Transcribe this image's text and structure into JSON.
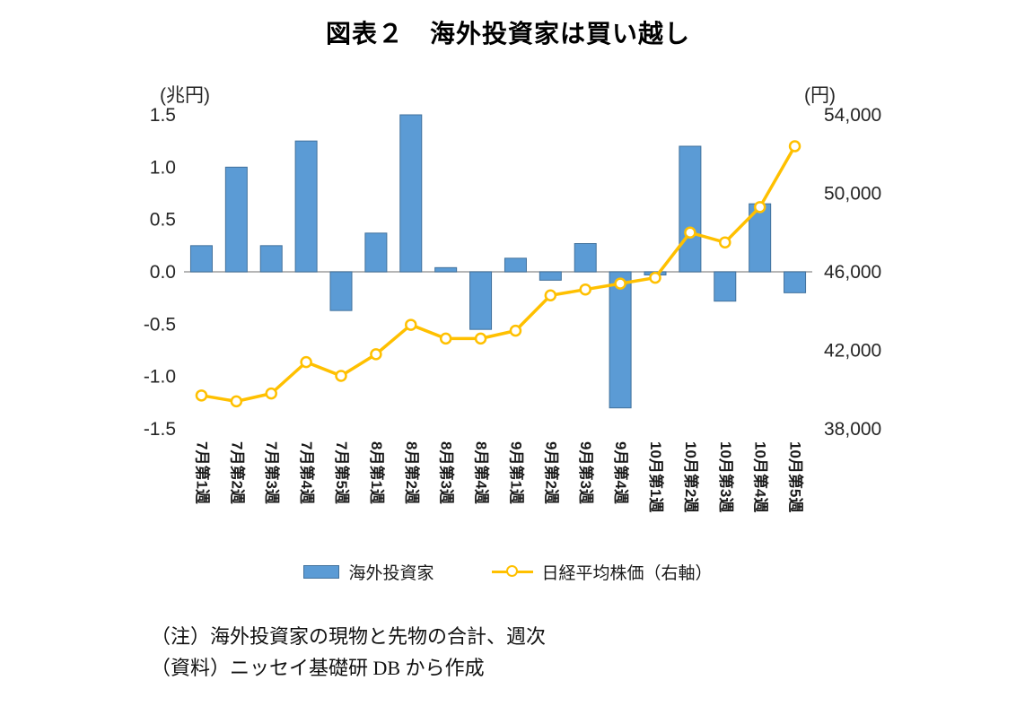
{
  "title": "図表２　海外投資家は買い越し",
  "left_axis": {
    "unit": "(兆円)",
    "tick_values": [
      1.5,
      1.0,
      0.5,
      0.0,
      -0.5,
      -1.0,
      -1.5
    ],
    "tick_labels": [
      "1.5",
      "1.0",
      "0.5",
      "0.0",
      "-0.5",
      "-1.0",
      "-1.5"
    ]
  },
  "right_axis": {
    "unit": "(円)",
    "tick_values": [
      54000,
      50000,
      46000,
      42000,
      38000
    ],
    "tick_labels": [
      "54,000",
      "50,000",
      "46,000",
      "42,000",
      "38,000"
    ]
  },
  "legend": {
    "items": [
      {
        "label": "海外投資家"
      },
      {
        "label": "日経平均株価（右軸）"
      }
    ]
  },
  "notes": {
    "line1": "（注）海外投資家の現物と先物の合計、週次",
    "line2": "（資料）ニッセイ基礎研 DB から作成"
  },
  "colors": {
    "bar": "#5B9BD5",
    "bar_border": "#41719C",
    "line": "#FFC000",
    "marker_fill": "#FFFFFF",
    "zero_line": "#9E9E9E"
  },
  "chart_data": {
    "type": "bar+line",
    "title": "図表２　海外投資家は買い越し",
    "categories": [
      "7月第1週",
      "7月第2週",
      "7月第3週",
      "7月第4週",
      "7月第5週",
      "8月第1週",
      "8月第2週",
      "8月第3週",
      "8月第4週",
      "9月第1週",
      "9月第2週",
      "9月第3週",
      "9月第4週",
      "10月第1週",
      "10月第2週",
      "10月第3週",
      "10月第4週",
      "10月第5週"
    ],
    "left_ylim": [
      -1.5,
      1.5
    ],
    "right_ylim": [
      38000,
      54000
    ],
    "grid": "zero-line-only",
    "legend_position": "bottom",
    "series": [
      {
        "name": "海外投資家",
        "type": "bar",
        "axis": "left",
        "unit": "兆円",
        "values": [
          0.25,
          1.0,
          0.25,
          1.25,
          -0.37,
          0.37,
          1.5,
          0.04,
          -0.55,
          0.13,
          -0.08,
          0.27,
          -1.3,
          -0.03,
          1.2,
          -0.28,
          0.65,
          -0.2
        ]
      },
      {
        "name": "日経平均株価（右軸）",
        "type": "line",
        "axis": "right",
        "unit": "円",
        "values": [
          39700,
          39400,
          39800,
          41400,
          40700,
          41800,
          43300,
          42600,
          42600,
          43000,
          44800,
          45100,
          45400,
          45700,
          48000,
          47500,
          49300,
          52400
        ]
      }
    ]
  }
}
